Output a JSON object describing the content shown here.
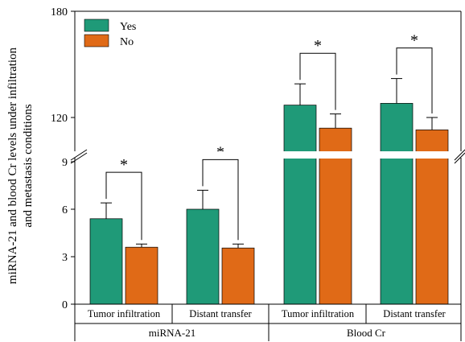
{
  "chart_data": {
    "type": "bar",
    "ylabel_lines": [
      "miRNA-21 and blood Cr levels under infiltration",
      "and metastasis conditions"
    ],
    "axis_lower": {
      "ylim": [
        0,
        9
      ],
      "ticks": [
        0,
        3,
        6,
        9
      ]
    },
    "axis_upper": {
      "ylim": [
        95,
        180
      ],
      "ticks": [
        120,
        180
      ]
    },
    "axis_break": "between 9 and 95 (lower scale) / upper scale",
    "legend": {
      "placement": "top-left",
      "entries": [
        "Yes",
        "No"
      ]
    },
    "colors": {
      "Yes": "#1f9a78",
      "No": "#e06a17"
    },
    "groups": [
      {
        "label": "miRNA-21",
        "axis": "lower"
      },
      {
        "label": "Blood Cr",
        "axis": "upper"
      }
    ],
    "categories": [
      "Tumor infiltration",
      "Distant transfer",
      "Tumor infiltration",
      "Distant transfer"
    ],
    "category_group": [
      0,
      0,
      1,
      1
    ],
    "series": [
      {
        "name": "Yes",
        "values": [
          5.4,
          6.0,
          127,
          128
        ],
        "errors": [
          1.0,
          1.2,
          12,
          14
        ]
      },
      {
        "name": "No",
        "values": [
          3.6,
          3.55,
          114,
          113
        ],
        "errors": [
          0.2,
          0.25,
          8,
          7
        ]
      }
    ],
    "significance": [
      "*",
      "*",
      "*",
      "*"
    ]
  }
}
